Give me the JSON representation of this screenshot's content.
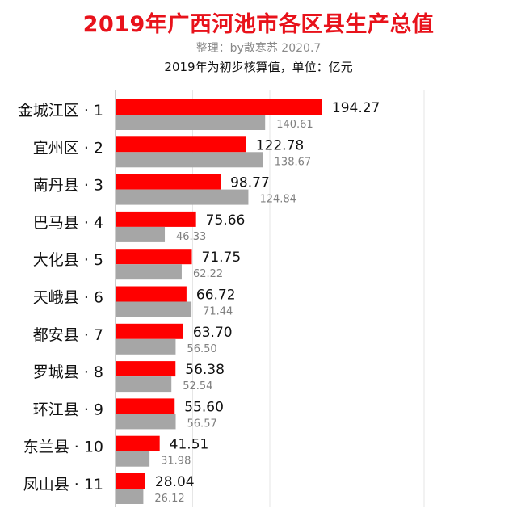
{
  "header": {
    "title": "2019年广西河池市各区县生产总值",
    "credit": "整理：by散寒苏  2020.7",
    "subtitle": "2019年为初步核算值，单位：亿元"
  },
  "colors": {
    "primary_bar": "#ff0000",
    "secondary_bar": "#a6a6a6",
    "title": "#e8121b",
    "gridline": "#e6e6e6"
  },
  "chart_data": {
    "type": "bar",
    "orientation": "horizontal",
    "title": "2019年广西河池市各区县生产总值",
    "categories": [
      "金城江区 · 1",
      "宜州区 · 2",
      "南丹县 · 3",
      "巴马县 · 4",
      "大化县 · 5",
      "天峨县 · 6",
      "都安县 · 7",
      "罗城县 · 8",
      "环江县 · 9",
      "东兰县 · 10",
      "凤山县 · 11"
    ],
    "series": [
      {
        "values": [
          194.27,
          122.78,
          98.77,
          75.66,
          71.75,
          66.72,
          63.7,
          56.38,
          55.6,
          41.51,
          28.04
        ],
        "labels": [
          "194.27",
          "122.78",
          "98.77",
          "75.66",
          "71.75",
          "66.72",
          "63.70",
          "56.38",
          "55.60",
          "41.51",
          "28.04"
        ]
      },
      {
        "values": [
          140.61,
          138.67,
          124.84,
          46.33,
          62.22,
          71.44,
          56.5,
          52.54,
          56.57,
          31.98,
          26.12
        ],
        "labels": [
          "140.61",
          "138.67",
          "124.84",
          "46.33",
          "62.22",
          "71.44",
          "56.50",
          "52.54",
          "56.57",
          "31.98",
          "26.12"
        ]
      }
    ],
    "xlim": [
      0,
      290
    ],
    "gridlines": [
      0,
      72.5,
      145,
      217.5,
      290
    ],
    "grid": true,
    "legend": "none"
  }
}
